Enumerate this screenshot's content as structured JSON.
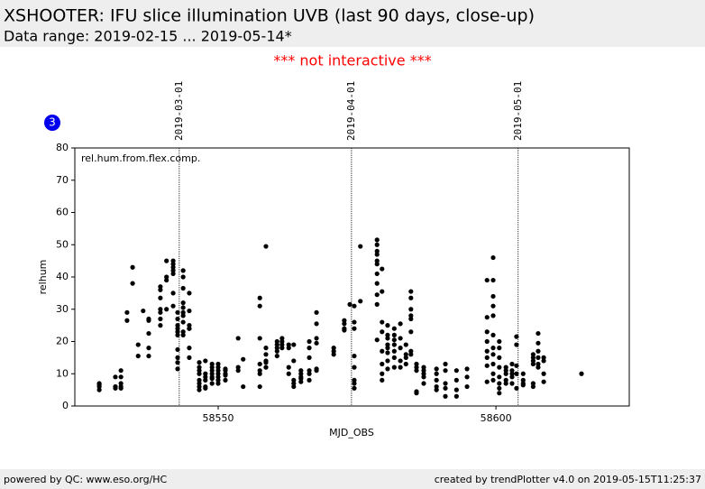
{
  "header": {
    "title": "XSHOOTER: IFU slice illumination UVB (last 90 days, close-up)",
    "subtitle": "Data range: 2019-02-15 ... 2019-05-14*",
    "notice": "*** not interactive ***"
  },
  "badge": "3",
  "footer": {
    "left": "powered by QC: www.eso.org/HC",
    "right": "created by trendPlotter v4.0 on 2019-05-15T11:25:37"
  },
  "chart_data": {
    "type": "scatter",
    "annotation": "rel.hum.from.flex.comp.",
    "y_label": "relhum",
    "x_label": "MJD_OBS",
    "color": "#000000",
    "xlim": [
      58524.2,
      58624.0
    ],
    "xticks": [
      58550,
      58600
    ],
    "ylim": [
      0,
      80
    ],
    "yticks": [
      0,
      10,
      20,
      30,
      40,
      50,
      60,
      70,
      80
    ],
    "vlines": [
      {
        "x": 58543,
        "label": "2019-03-01"
      },
      {
        "x": 58574,
        "label": "2019-04-01"
      },
      {
        "x": 58604,
        "label": "2019-05-01"
      }
    ],
    "x": [
      58528.6,
      58528.6,
      58528.6,
      58528.6,
      58531.5,
      58531.5,
      58531.5,
      58531.5,
      58532.5,
      58532.5,
      58532.5,
      58532.5,
      58532.5,
      58533.6,
      58533.6,
      58534.6,
      58534.6,
      58535.6,
      58535.6,
      58536.5,
      58537.5,
      58537.5,
      58537.5,
      58537.5,
      58537.5,
      58539.6,
      58539.6,
      58539.6,
      58539.6,
      58539.6,
      58539.6,
      58539.6,
      58540.7,
      58540.7,
      58540.7,
      58540.7,
      58541.9,
      58541.9,
      58541.9,
      58541.9,
      58541.9,
      58541.9,
      58541.9,
      58542.7,
      58542.7,
      58542.7,
      58542.7,
      58542.7,
      58542.7,
      58542.7,
      58542.7,
      58542.7,
      58542.7,
      58543.7,
      58543.7,
      58543.7,
      58543.7,
      58543.7,
      58543.7,
      58543.7,
      58543.7,
      58543.7,
      58543.7,
      58544.8,
      58544.8,
      58544.8,
      58544.8,
      58544.8,
      58544.8,
      58544.8,
      58546.6,
      58546.6,
      58546.6,
      58546.6,
      58546.6,
      58546.6,
      58546.6,
      58546.6,
      58547.7,
      58547.7,
      58547.7,
      58547.7,
      58547.7,
      58547.7,
      58548.9,
      58548.9,
      58548.9,
      58548.9,
      58548.9,
      58548.9,
      58548.9,
      58550,
      58550,
      58550,
      58550,
      58550,
      58550,
      58550,
      58551.3,
      58551.3,
      58551.3,
      58551.3,
      58551.3,
      58553.6,
      58553.6,
      58553.6,
      58554.5,
      58554.5,
      58557.5,
      58557.5,
      58557.5,
      58557.5,
      58557.5,
      58557.5,
      58557.5,
      58558.6,
      58558.6,
      58558.6,
      58558.6,
      58558.6,
      58558.6,
      58560.6,
      58560.6,
      58560.6,
      58560.6,
      58560.6,
      58561.5,
      58561.5,
      58561.5,
      58561.5,
      58562.7,
      58562.7,
      58562.7,
      58562.7,
      58563.6,
      58563.6,
      58563.6,
      58563.6,
      58563.6,
      58564.9,
      58564.9,
      58564.9,
      58564.9,
      58564.9,
      58566.4,
      58566.4,
      58566.4,
      58566.4,
      58566.4,
      58566.4,
      58567.7,
      58567.7,
      58567.7,
      58567.7,
      58567.7,
      58567.7,
      58570.8,
      58570.8,
      58570.8,
      58572.7,
      58572.7,
      58572.7,
      58572.7,
      58573.7,
      58574.5,
      58574.5,
      58574.5,
      58574.5,
      58574.5,
      58574.5,
      58574.5,
      58574.5,
      58575.6,
      58575.6,
      58578.6,
      58578.6,
      58578.6,
      58578.6,
      58578.6,
      58578.6,
      58578.6,
      58578.6,
      58578.6,
      58578.6,
      58578.6,
      58579.5,
      58579.5,
      58579.5,
      58579.5,
      58579.5,
      58579.5,
      58579.5,
      58579.5,
      58580.5,
      58580.5,
      58580.5,
      58580.5,
      58580.5,
      58580.5,
      58580.5,
      58580.5,
      58581.7,
      58581.7,
      58581.7,
      58581.7,
      58581.7,
      58581.7,
      58581.7,
      58582.8,
      58582.8,
      58582.8,
      58582.8,
      58582.8,
      58583.8,
      58583.8,
      58583.8,
      58583.8,
      58584.7,
      58584.7,
      58584.7,
      58584.7,
      58584.7,
      58584.7,
      58584.7,
      58584.7,
      58585.7,
      58585.7,
      58585.7,
      58585.7,
      58585.7,
      58587,
      58587,
      58587,
      58587,
      58587,
      58589.3,
      58589.3,
      58589.3,
      58589.3,
      58589.3,
      58590.9,
      58590.9,
      58590.9,
      58590.9,
      58590.9,
      58592.9,
      58592.9,
      58592.9,
      58592.9,
      58594.8,
      58594.8,
      58594.8,
      58598.4,
      58598.4,
      58598.4,
      58598.4,
      58598.4,
      58598.4,
      58598.4,
      58598.4,
      58599.5,
      58599.5,
      58599.5,
      58599.5,
      58599.5,
      58599.5,
      58599.5,
      58599.5,
      58599.5,
      58599.5,
      58599.5,
      58600.6,
      58600.6,
      58600.6,
      58600.6,
      58600.6,
      58600.6,
      58600.6,
      58600.6,
      58601.8,
      58601.8,
      58601.8,
      58601.8,
      58601.8,
      58602.9,
      58602.9,
      58602.9,
      58602.9,
      58602.9,
      58603.7,
      58603.7,
      58603.7,
      58603.7,
      58603.7,
      58604.9,
      58604.9,
      58604.9,
      58604.9,
      58606.7,
      58606.7,
      58606.7,
      58606.7,
      58606.7,
      58606.7,
      58607.6,
      58607.6,
      58607.6,
      58607.6,
      58607.6,
      58607.6,
      58608.6,
      58608.6,
      58608.6,
      58608.6,
      58615.4
    ],
    "values": [
      5,
      6,
      7,
      6.5,
      6,
      5.5,
      9,
      6,
      11,
      9,
      6,
      7,
      5.5,
      29,
      26.5,
      43,
      38,
      19,
      15.5,
      29.5,
      18,
      15.5,
      22.5,
      26.5,
      27,
      25,
      27,
      29,
      30,
      33.5,
      36,
      37,
      45,
      40,
      30,
      39,
      45,
      44,
      43,
      41,
      42,
      35,
      31,
      22,
      23,
      24,
      25,
      27,
      29,
      17.5,
      15,
      13.5,
      11.5,
      22,
      26,
      28,
      29,
      23,
      30.5,
      32,
      40,
      42,
      36.5,
      24,
      25,
      35,
      29.5,
      24,
      18,
      15,
      8,
      11,
      12,
      13.5,
      5,
      6,
      7,
      10,
      14,
      10,
      9,
      6,
      5.5,
      8,
      12,
      11,
      9,
      7,
      10,
      13,
      8.5,
      13,
      12,
      11,
      10,
      9,
      8,
      7,
      11,
      10,
      9.5,
      11.5,
      8,
      21,
      12,
      11,
      14.5,
      6,
      33.5,
      31,
      21,
      13,
      11,
      10,
      6,
      49.5,
      18,
      16,
      14,
      12,
      13.5,
      20,
      18,
      17,
      15.5,
      19,
      21,
      19,
      18,
      20,
      19,
      18,
      12,
      10,
      19,
      14,
      8,
      6,
      7,
      8.5,
      9,
      11,
      7.5,
      10,
      18,
      15,
      20,
      10,
      8,
      11,
      29,
      25.5,
      21,
      19.5,
      11.5,
      11,
      17,
      18,
      16,
      26.5,
      25.5,
      24,
      23.5,
      31.5,
      31,
      26,
      24,
      15.5,
      12,
      8,
      7,
      5.5,
      49.5,
      32.5,
      51.5,
      50,
      48,
      47,
      45,
      44,
      41,
      38,
      34.5,
      31.5,
      20.5,
      42.5,
      35.5,
      26,
      23,
      17,
      13,
      10,
      8,
      25,
      22,
      21,
      19,
      18,
      16.5,
      14,
      11.5,
      24,
      22,
      20.5,
      19,
      17,
      15,
      12,
      25.5,
      21,
      18,
      14,
      12,
      19,
      16,
      15,
      13,
      35.5,
      33.5,
      30,
      27,
      28,
      23,
      17,
      16,
      11,
      12,
      4,
      4.5,
      13,
      12,
      11,
      10,
      9,
      7,
      11.5,
      10,
      8,
      6,
      5,
      13,
      11,
      7,
      5.5,
      3,
      11,
      3,
      8,
      5,
      11.5,
      9,
      6,
      39,
      27.5,
      23,
      20,
      17,
      15,
      12.5,
      7.5,
      46,
      39,
      34,
      31,
      28,
      22,
      18,
      16,
      13,
      10,
      8,
      20,
      18,
      15,
      12,
      9,
      7,
      5.5,
      4,
      12,
      11,
      10,
      8,
      7,
      13,
      11,
      10,
      9,
      7,
      21.5,
      19,
      12.5,
      10,
      5.5,
      8,
      7,
      6.5,
      10,
      6,
      7,
      13,
      15,
      16,
      14,
      19.5,
      22.5,
      17,
      15,
      13,
      12,
      15,
      14,
      10,
      7.5,
      10
    ]
  }
}
